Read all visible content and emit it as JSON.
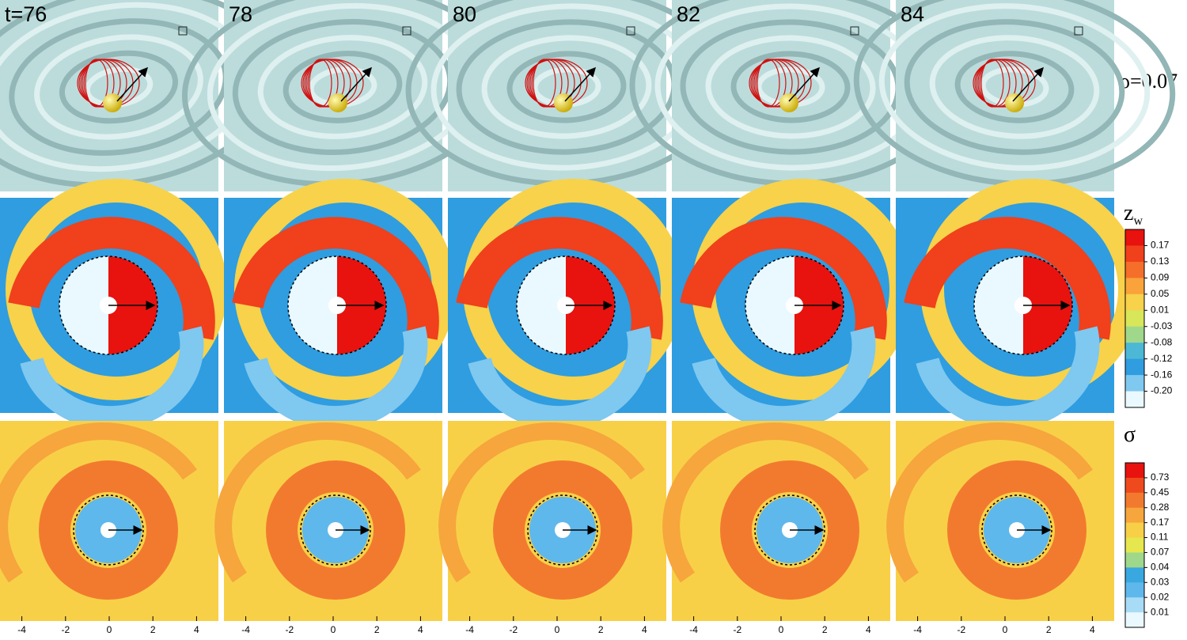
{
  "times": [
    "t=76",
    "78",
    "80",
    "82",
    "84"
  ],
  "density_label": "ρ=0.07",
  "xlim": [
    -5,
    5
  ],
  "xticks": [
    -4,
    -2,
    0,
    2,
    4
  ],
  "colorbars": [
    {
      "title": "z",
      "subscript": "w",
      "levels": [
        0.17,
        0.13,
        0.09,
        0.05,
        0.01,
        -0.03,
        -0.08,
        -0.12,
        -0.16,
        {
          "value": -0.2,
          "label": "-0.20"
        }
      ],
      "colors": [
        "#e8120e",
        "#f0401c",
        "#f56e2a",
        "#f9a33a",
        "#f7d24a",
        "#d8e65a",
        "#9fd88a",
        "#4cb8d6",
        "#2f9de0",
        "#7fc8f0",
        "#eaf9ff"
      ]
    },
    {
      "title": "σ",
      "levels": [
        0.73,
        0.45,
        0.28,
        0.17,
        0.11,
        0.07,
        0.04,
        0.03,
        0.02,
        0.01
      ],
      "colors": [
        "#e8120e",
        "#ef4a1e",
        "#f27a2e",
        "#f6a63c",
        "#f8d048",
        "#e6e64e",
        "#9fd88a",
        "#3aa8e0",
        "#5fb8ec",
        "#a8dcf6",
        "#eaf9ff"
      ]
    }
  ]
}
